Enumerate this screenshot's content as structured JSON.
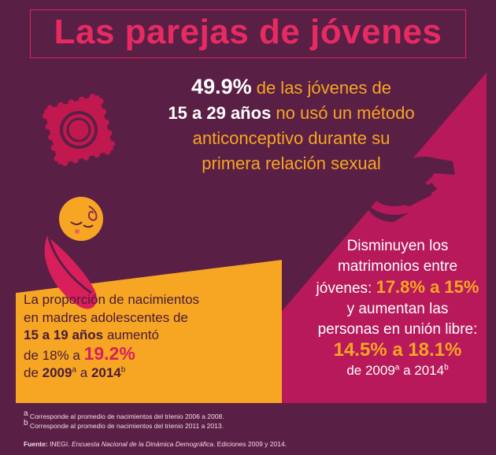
{
  "title": "Las parejas de jóvenes",
  "stat": {
    "percent": "49.9%",
    "text1": " de las jóvenes de",
    "age_range": "15 a 29 años",
    "text2": " no usó un método",
    "line3": "anticonceptivo durante su",
    "line4": "primera relación sexual"
  },
  "marriages": {
    "line1": "Disminuyen los",
    "line2": "matrimonios entre",
    "line3_prefix": "jóvenes: ",
    "change1": "17.8% a 15%",
    "line4": "y aumentan las",
    "line5": "personas en unión libre:",
    "change2": "14.5% a 18.1%",
    "years_prefix": "de 2009",
    "sup_a": "a",
    "years_mid": " a 2014",
    "sup_b": "b"
  },
  "births": {
    "line1": "La proporción de nacimientos",
    "line2": "en madres adolescentes de",
    "age_range": "15 a 19 años",
    "line3_suffix": " aumentó",
    "line4_prefix": "de 18% a ",
    "pct": "19.2%",
    "line5_prefix": "de ",
    "year1": "2009",
    "sup_a": "a",
    "year_mid": " a ",
    "year2": "2014",
    "sup_b": "b"
  },
  "footnotes": {
    "a_mark": "a",
    "a_text": " Corresponde al promedio de nacimientos del trienio 2006 a 2008.",
    "b_mark": "b",
    "b_text": " Corresponde al promedio de nacimientos del trienio 2011 a 2013."
  },
  "source": {
    "label": "Fuente:",
    "org": " INEGI. ",
    "survey": "Encuesta Nacional de la Dinámica Demográfica",
    "editions": ". Ediciones 2009 y 2014."
  },
  "colors": {
    "background": "#5a1f45",
    "title": "#e82a63",
    "pink_block": "#b8195a",
    "orange_block": "#f6a623",
    "accent_text": "#f6a623"
  },
  "icons": [
    "condom-wrapper-icon",
    "handshake-icon",
    "baby-icon"
  ]
}
